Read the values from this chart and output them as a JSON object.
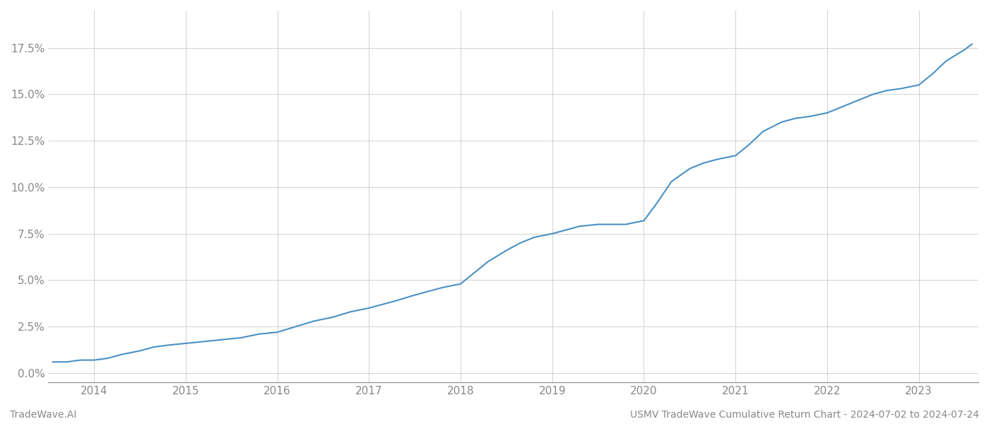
{
  "title": "USMV TradeWave Cumulative Return Chart - 2024-07-02 to 2024-07-24",
  "watermark": "TradeWave.AI",
  "line_color": "#4a90c4",
  "background_color": "#ffffff",
  "grid_color": "#cccccc",
  "x_years": [
    2014,
    2015,
    2016,
    2017,
    2018,
    2019,
    2020,
    2021,
    2022,
    2023
  ],
  "y_ticks": [
    0.0,
    0.025,
    0.05,
    0.075,
    0.1,
    0.125,
    0.15,
    0.175
  ],
  "xlim": [
    2013.5,
    2023.65
  ],
  "ylim": [
    -0.005,
    0.195
  ],
  "data_x": [
    2013.55,
    2013.7,
    2013.85,
    2014.0,
    2014.15,
    2014.3,
    2014.5,
    2014.65,
    2014.8,
    2015.0,
    2015.2,
    2015.4,
    2015.6,
    2015.8,
    2016.0,
    2016.2,
    2016.4,
    2016.6,
    2016.8,
    2017.0,
    2017.15,
    2017.3,
    2017.5,
    2017.65,
    2017.8,
    2018.0,
    2018.15,
    2018.3,
    2018.5,
    2018.65,
    2018.8,
    2019.0,
    2019.15,
    2019.3,
    2019.5,
    2019.65,
    2019.8,
    2020.0,
    2020.15,
    2020.3,
    2020.5,
    2020.65,
    2020.8,
    2021.0,
    2021.15,
    2021.3,
    2021.5,
    2021.65,
    2021.8,
    2022.0,
    2022.15,
    2022.3,
    2022.5,
    2022.65,
    2022.8,
    2023.0,
    2023.15,
    2023.3,
    2023.5,
    2023.58
  ],
  "data_y": [
    0.006,
    0.006,
    0.007,
    0.007,
    0.008,
    0.01,
    0.012,
    0.014,
    0.015,
    0.016,
    0.017,
    0.018,
    0.019,
    0.021,
    0.022,
    0.025,
    0.028,
    0.03,
    0.033,
    0.035,
    0.037,
    0.039,
    0.042,
    0.044,
    0.046,
    0.048,
    0.054,
    0.06,
    0.066,
    0.07,
    0.073,
    0.075,
    0.077,
    0.079,
    0.08,
    0.08,
    0.08,
    0.082,
    0.092,
    0.103,
    0.11,
    0.113,
    0.115,
    0.117,
    0.123,
    0.13,
    0.135,
    0.137,
    0.138,
    0.14,
    0.143,
    0.146,
    0.15,
    0.152,
    0.153,
    0.155,
    0.161,
    0.168,
    0.174,
    0.177
  ]
}
